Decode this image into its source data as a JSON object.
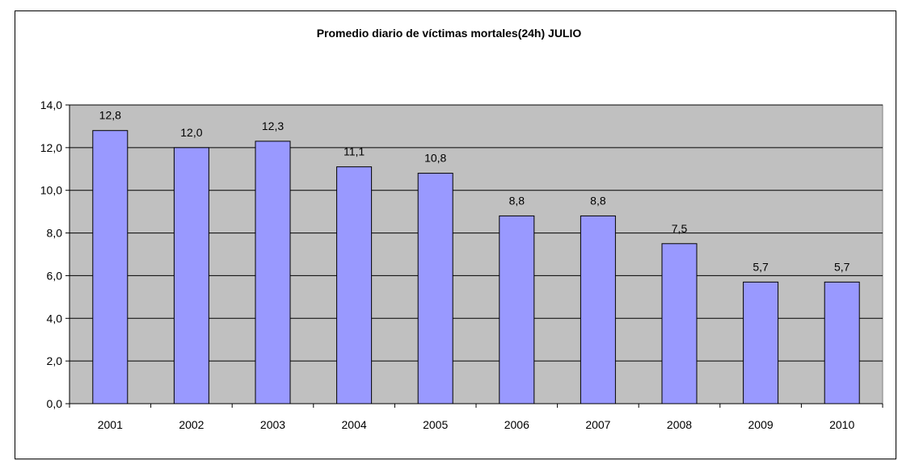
{
  "chart_data": {
    "type": "bar",
    "title": "Promedio diario de víctimas mortales(24h) JULIO",
    "categories": [
      "2001",
      "2002",
      "2003",
      "2004",
      "2005",
      "2006",
      "2007",
      "2008",
      "2009",
      "2010"
    ],
    "values": [
      12.8,
      12.0,
      12.3,
      11.1,
      10.8,
      8.8,
      8.8,
      7.5,
      5.7,
      5.7
    ],
    "data_labels": [
      "12,8",
      "12,0",
      "12,3",
      "11,1",
      "10,8",
      "8,8",
      "8,8",
      "7,5",
      "5,7",
      "5,7"
    ],
    "y_ticks": [
      0,
      2,
      4,
      6,
      8,
      10,
      12,
      14
    ],
    "y_tick_labels": [
      "0,0",
      "2,0",
      "4,0",
      "6,0",
      "8,0",
      "10,0",
      "12,0",
      "14,0"
    ],
    "ylim": [
      0,
      14
    ],
    "grid": true,
    "legend": "none",
    "colors": {
      "bar_fill": "#9999ff",
      "bar_stroke": "#000000",
      "plot_background": "#c0c0c0",
      "gridline": "#000000"
    }
  }
}
